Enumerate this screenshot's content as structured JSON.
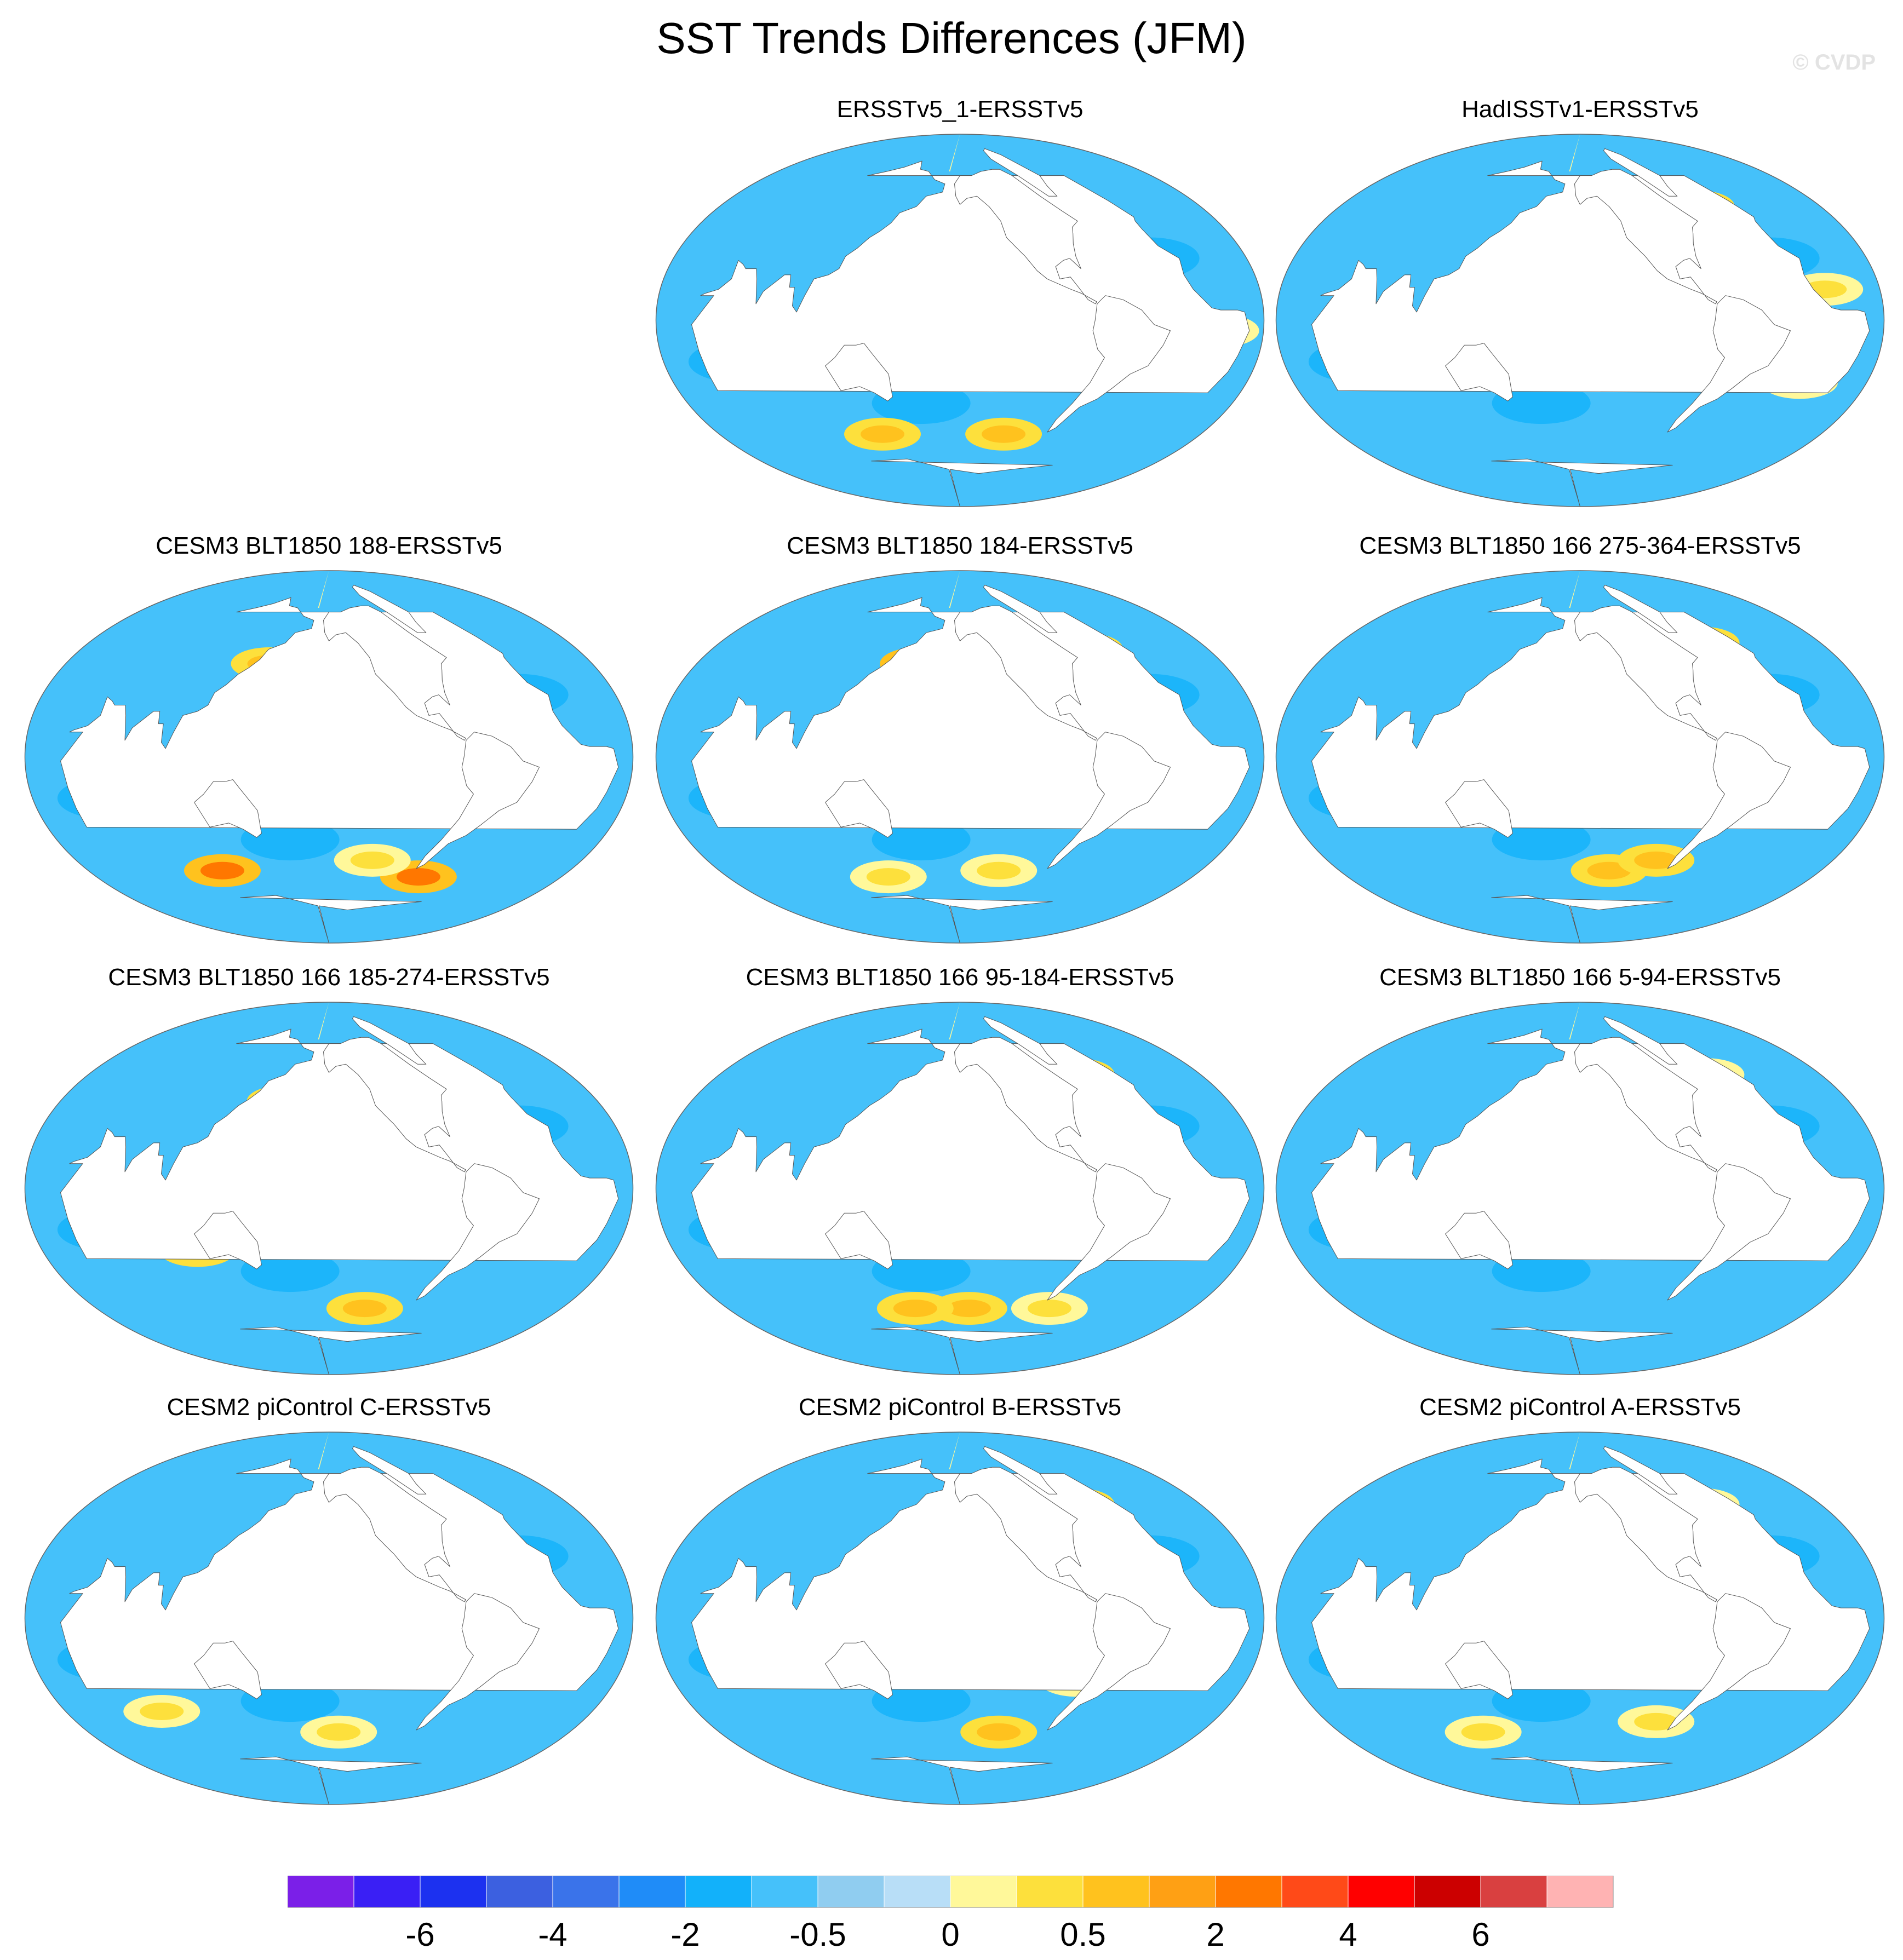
{
  "figure": {
    "title": "SST Trends Differences (JFM)",
    "watermark": "© CVDP"
  },
  "panels": [
    {
      "title": "ERSSTv5_1-ERSSTv5",
      "blobs": [
        [
          -150,
          42,
          1
        ],
        [
          -60,
          45,
          1
        ],
        [
          -45,
          15,
          0
        ],
        [
          -5,
          -5,
          0
        ],
        [
          -115,
          -55,
          1
        ],
        [
          120,
          -55,
          1
        ],
        [
          -80,
          -25,
          1
        ]
      ]
    },
    {
      "title": "HadISSTv1-ERSSTv5",
      "blobs": [
        [
          -165,
          45,
          1
        ],
        [
          -40,
          55,
          1
        ],
        [
          -60,
          38,
          1
        ],
        [
          -10,
          15,
          0
        ],
        [
          150,
          5,
          0
        ],
        [
          -10,
          -30,
          0
        ]
      ]
    },
    {
      "title": "CESM3 BLT1850 188-ERSSTv5",
      "blobs": [
        [
          150,
          45,
          1
        ],
        [
          -45,
          55,
          1
        ],
        [
          90,
          -55,
          2
        ],
        [
          -60,
          -58,
          2
        ],
        [
          -120,
          -50,
          0
        ]
      ]
    },
    {
      "title": "CESM3 BLT1850 184-ERSSTv5",
      "blobs": [
        [
          165,
          45,
          2
        ],
        [
          -40,
          52,
          1
        ],
        [
          -120,
          -55,
          0
        ],
        [
          120,
          -58,
          0
        ]
      ]
    },
    {
      "title": "CESM3 BLT1850 166 275-364-ERSSTv5",
      "blobs": [
        [
          -150,
          30,
          1
        ],
        [
          -35,
          55,
          1
        ],
        [
          -130,
          -55,
          1
        ],
        [
          -90,
          -50,
          1
        ],
        [
          -140,
          5,
          0
        ]
      ]
    },
    {
      "title": "CESM3 BLT1850 166 185-274-ERSSTv5",
      "blobs": [
        [
          165,
          42,
          1
        ],
        [
          -45,
          55,
          1
        ],
        [
          110,
          -30,
          1
        ],
        [
          -120,
          -58,
          1
        ],
        [
          -80,
          -20,
          0
        ]
      ]
    },
    {
      "title": "CESM3 BLT1850 166 95-184-ERSSTv5",
      "blobs": [
        [
          -150,
          40,
          0
        ],
        [
          -40,
          55,
          1
        ],
        [
          -150,
          -58,
          1
        ],
        [
          150,
          -58,
          1
        ],
        [
          -60,
          -58,
          0
        ]
      ]
    },
    {
      "title": "CESM3 BLT1850 166 5-94-ERSSTv5",
      "blobs": [
        [
          175,
          45,
          1
        ],
        [
          -30,
          55,
          0
        ],
        [
          100,
          -20,
          0
        ]
      ]
    },
    {
      "title": "CESM2 piControl C-ERSSTv5",
      "blobs": [
        [
          -45,
          55,
          1
        ],
        [
          -90,
          -10,
          0
        ],
        [
          -150,
          -55,
          0
        ],
        [
          60,
          -45,
          0
        ]
      ]
    },
    {
      "title": "CESM2 piControl B-ERSSTv5",
      "blobs": [
        [
          -170,
          45,
          0
        ],
        [
          -40,
          55,
          1
        ],
        [
          -120,
          -55,
          1
        ],
        [
          -80,
          -30,
          0
        ]
      ]
    },
    {
      "title": "CESM2 piControl A-ERSSTv5",
      "blobs": [
        [
          -150,
          45,
          0
        ],
        [
          -35,
          55,
          0
        ],
        [
          100,
          -55,
          0
        ],
        [
          -90,
          -50,
          0
        ]
      ]
    }
  ],
  "colorbar": {
    "colors": [
      "#7b1fe8",
      "#3a1ff5",
      "#1c31f0",
      "#3c60e0",
      "#3a73ea",
      "#1f8cf8",
      "#12b1fa",
      "#45c1fa",
      "#90cdf0",
      "#b8def7",
      "#fff89a",
      "#fde03c",
      "#ffc21e",
      "#ffa014",
      "#ff7700",
      "#ff4a18",
      "#ff0000",
      "#cc0000",
      "#d94040",
      "#ffb3b3"
    ],
    "labels": [
      "-6",
      "-4",
      "-2",
      "-0.5",
      "0",
      "0.5",
      "2",
      "4",
      "6"
    ]
  }
}
